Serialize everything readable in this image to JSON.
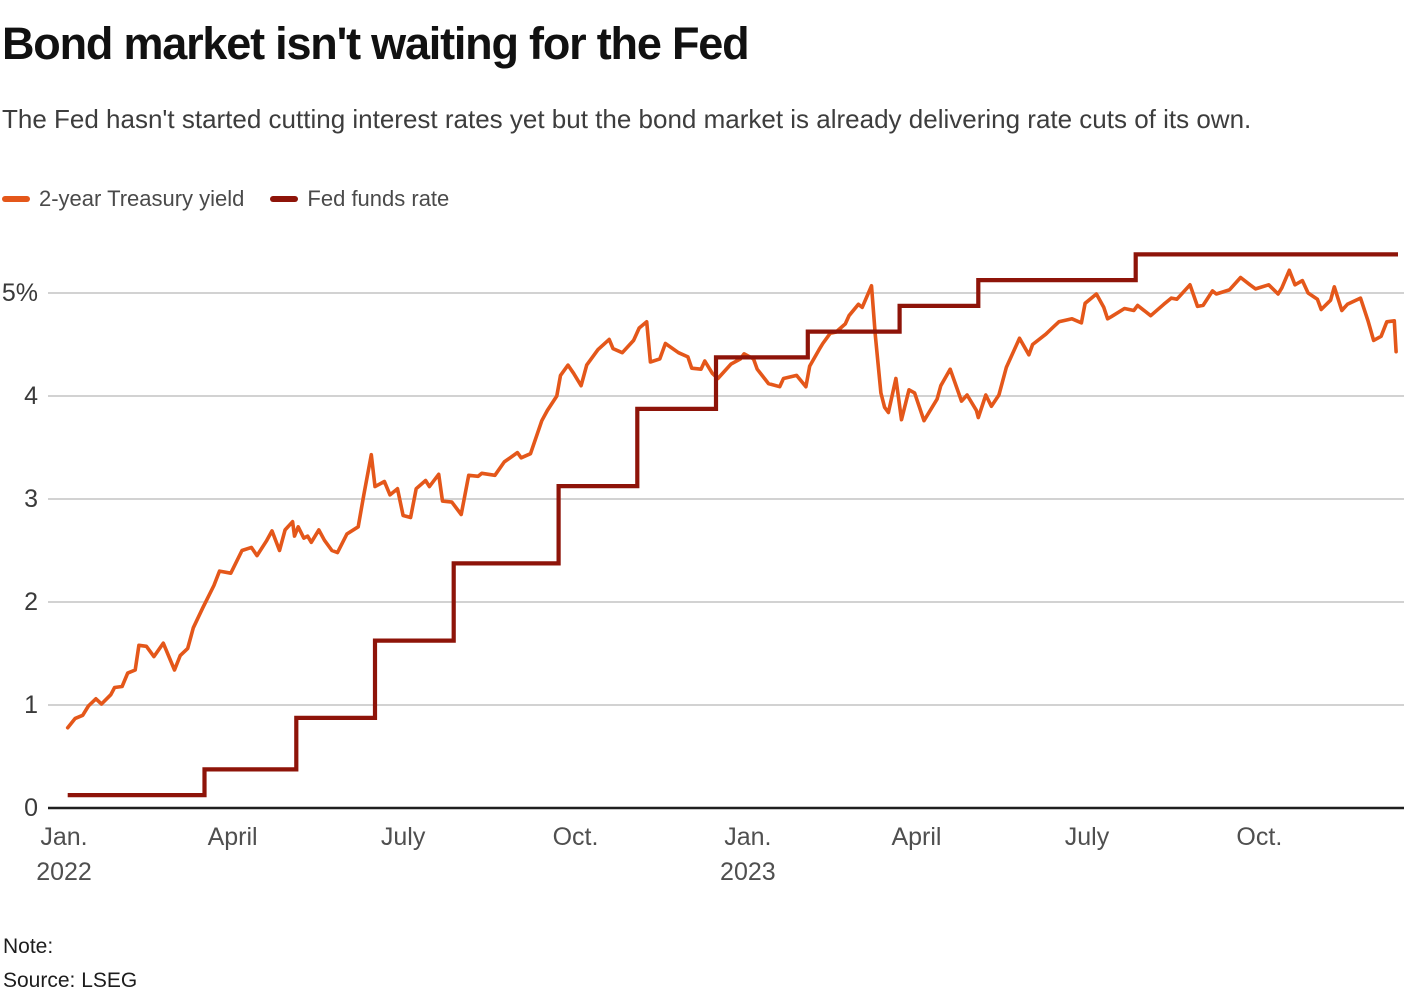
{
  "header": {
    "title": "Bond market isn't waiting for the Fed",
    "subtitle": "The Fed hasn't started cutting interest rates yet but the bond market is already delivering rate cuts of its own."
  },
  "legend": {
    "items": [
      {
        "label": "2-year Treasury yield",
        "color": "#e4571a"
      },
      {
        "label": "Fed funds rate",
        "color": "#8e1409"
      }
    ]
  },
  "footer": {
    "note": "Note:",
    "source": "Source: LSEG"
  },
  "colors": {
    "treasury_line": "#e4571a",
    "fed_funds_line": "#8e1409",
    "gridline": "#cbcbcb",
    "axis_line": "#1f1f1f",
    "tick_text": "#4f4f4f"
  },
  "chart_data": {
    "type": "line",
    "title": "Bond market isn't waiting for the Fed",
    "xlabel": "",
    "ylabel": "",
    "grid": "horizontal",
    "legend_position": "top-left",
    "ylim": [
      0,
      5.6
    ],
    "y_ticks": [
      0,
      1,
      2,
      3,
      4,
      5
    ],
    "y_tick_labels": [
      "0",
      "1",
      "2",
      "3",
      "4",
      "5%"
    ],
    "x_domain": [
      "2022-01-01",
      "2023-12-14"
    ],
    "x_ticks": [
      {
        "label": "Jan.",
        "sublabel": "2022",
        "date": "2022-01-01"
      },
      {
        "label": "April",
        "sublabel": "",
        "date": "2022-04-01"
      },
      {
        "label": "July",
        "sublabel": "",
        "date": "2022-07-01"
      },
      {
        "label": "Oct.",
        "sublabel": "",
        "date": "2022-10-01"
      },
      {
        "label": "Jan.",
        "sublabel": "2023",
        "date": "2023-01-01"
      },
      {
        "label": "April",
        "sublabel": "",
        "date": "2023-04-01"
      },
      {
        "label": "July",
        "sublabel": "",
        "date": "2023-07-01"
      },
      {
        "label": "Oct.",
        "sublabel": "",
        "date": "2023-10-01"
      }
    ],
    "series": [
      {
        "name": "2-year Treasury yield",
        "color": "#e4571a",
        "style": "line",
        "points": [
          [
            "2022-01-03",
            0.78
          ],
          [
            "2022-01-07",
            0.87
          ],
          [
            "2022-01-11",
            0.9
          ],
          [
            "2022-01-14",
            0.99
          ],
          [
            "2022-01-18",
            1.06
          ],
          [
            "2022-01-21",
            1.01
          ],
          [
            "2022-01-26",
            1.1
          ],
          [
            "2022-01-28",
            1.17
          ],
          [
            "2022-02-01",
            1.18
          ],
          [
            "2022-02-04",
            1.31
          ],
          [
            "2022-02-08",
            1.34
          ],
          [
            "2022-02-10",
            1.58
          ],
          [
            "2022-02-14",
            1.57
          ],
          [
            "2022-02-18",
            1.47
          ],
          [
            "2022-02-23",
            1.6
          ],
          [
            "2022-03-01",
            1.34
          ],
          [
            "2022-03-04",
            1.48
          ],
          [
            "2022-03-08",
            1.55
          ],
          [
            "2022-03-11",
            1.75
          ],
          [
            "2022-03-16",
            1.94
          ],
          [
            "2022-03-22",
            2.16
          ],
          [
            "2022-03-25",
            2.3
          ],
          [
            "2022-03-31",
            2.28
          ],
          [
            "2022-04-06",
            2.5
          ],
          [
            "2022-04-11",
            2.53
          ],
          [
            "2022-04-14",
            2.45
          ],
          [
            "2022-04-19",
            2.59
          ],
          [
            "2022-04-22",
            2.69
          ],
          [
            "2022-04-26",
            2.5
          ],
          [
            "2022-04-29",
            2.7
          ],
          [
            "2022-05-03",
            2.78
          ],
          [
            "2022-05-04",
            2.64
          ],
          [
            "2022-05-06",
            2.73
          ],
          [
            "2022-05-09",
            2.62
          ],
          [
            "2022-05-11",
            2.64
          ],
          [
            "2022-05-13",
            2.58
          ],
          [
            "2022-05-17",
            2.7
          ],
          [
            "2022-05-20",
            2.6
          ],
          [
            "2022-05-24",
            2.5
          ],
          [
            "2022-05-27",
            2.48
          ],
          [
            "2022-06-01",
            2.66
          ],
          [
            "2022-06-07",
            2.73
          ],
          [
            "2022-06-10",
            3.04
          ],
          [
            "2022-06-14",
            3.43
          ],
          [
            "2022-06-16",
            3.12
          ],
          [
            "2022-06-21",
            3.17
          ],
          [
            "2022-06-24",
            3.04
          ],
          [
            "2022-06-28",
            3.1
          ],
          [
            "2022-07-01",
            2.84
          ],
          [
            "2022-07-05",
            2.82
          ],
          [
            "2022-07-08",
            3.1
          ],
          [
            "2022-07-13",
            3.18
          ],
          [
            "2022-07-15",
            3.12
          ],
          [
            "2022-07-20",
            3.24
          ],
          [
            "2022-07-22",
            2.98
          ],
          [
            "2022-07-27",
            2.97
          ],
          [
            "2022-08-01",
            2.85
          ],
          [
            "2022-08-05",
            3.23
          ],
          [
            "2022-08-10",
            3.22
          ],
          [
            "2022-08-12",
            3.25
          ],
          [
            "2022-08-19",
            3.23
          ],
          [
            "2022-08-24",
            3.36
          ],
          [
            "2022-08-31",
            3.45
          ],
          [
            "2022-09-02",
            3.4
          ],
          [
            "2022-09-07",
            3.44
          ],
          [
            "2022-09-13",
            3.76
          ],
          [
            "2022-09-16",
            3.86
          ],
          [
            "2022-09-21",
            4.0
          ],
          [
            "2022-09-23",
            4.2
          ],
          [
            "2022-09-27",
            4.3
          ],
          [
            "2022-09-30",
            4.22
          ],
          [
            "2022-10-04",
            4.1
          ],
          [
            "2022-10-07",
            4.3
          ],
          [
            "2022-10-13",
            4.45
          ],
          [
            "2022-10-19",
            4.55
          ],
          [
            "2022-10-21",
            4.46
          ],
          [
            "2022-10-26",
            4.42
          ],
          [
            "2022-11-01",
            4.54
          ],
          [
            "2022-11-04",
            4.66
          ],
          [
            "2022-11-08",
            4.72
          ],
          [
            "2022-11-10",
            4.33
          ],
          [
            "2022-11-15",
            4.36
          ],
          [
            "2022-11-18",
            4.51
          ],
          [
            "2022-11-25",
            4.42
          ],
          [
            "2022-11-30",
            4.38
          ],
          [
            "2022-12-02",
            4.27
          ],
          [
            "2022-12-07",
            4.26
          ],
          [
            "2022-12-09",
            4.34
          ],
          [
            "2022-12-13",
            4.22
          ],
          [
            "2022-12-16",
            4.17
          ],
          [
            "2022-12-23",
            4.31
          ],
          [
            "2022-12-28",
            4.36
          ],
          [
            "2022-12-30",
            4.41
          ],
          [
            "2023-01-04",
            4.36
          ],
          [
            "2023-01-06",
            4.26
          ],
          [
            "2023-01-12",
            4.12
          ],
          [
            "2023-01-18",
            4.09
          ],
          [
            "2023-01-20",
            4.17
          ],
          [
            "2023-01-27",
            4.2
          ],
          [
            "2023-02-01",
            4.09
          ],
          [
            "2023-02-03",
            4.29
          ],
          [
            "2023-02-08",
            4.45
          ],
          [
            "2023-02-10",
            4.51
          ],
          [
            "2023-02-14",
            4.61
          ],
          [
            "2023-02-17",
            4.62
          ],
          [
            "2023-02-22",
            4.7
          ],
          [
            "2023-02-24",
            4.78
          ],
          [
            "2023-03-01",
            4.89
          ],
          [
            "2023-03-03",
            4.86
          ],
          [
            "2023-03-08",
            5.07
          ],
          [
            "2023-03-10",
            4.59
          ],
          [
            "2023-03-13",
            4.03
          ],
          [
            "2023-03-15",
            3.89
          ],
          [
            "2023-03-17",
            3.84
          ],
          [
            "2023-03-21",
            4.17
          ],
          [
            "2023-03-24",
            3.77
          ],
          [
            "2023-03-28",
            4.06
          ],
          [
            "2023-03-31",
            4.03
          ],
          [
            "2023-04-05",
            3.76
          ],
          [
            "2023-04-12",
            3.97
          ],
          [
            "2023-04-14",
            4.1
          ],
          [
            "2023-04-19",
            4.26
          ],
          [
            "2023-04-25",
            3.95
          ],
          [
            "2023-04-28",
            4.01
          ],
          [
            "2023-05-03",
            3.86
          ],
          [
            "2023-05-04",
            3.79
          ],
          [
            "2023-05-08",
            4.01
          ],
          [
            "2023-05-11",
            3.9
          ],
          [
            "2023-05-15",
            4.01
          ],
          [
            "2023-05-19",
            4.28
          ],
          [
            "2023-05-26",
            4.56
          ],
          [
            "2023-05-31",
            4.4
          ],
          [
            "2023-06-02",
            4.5
          ],
          [
            "2023-06-09",
            4.6
          ],
          [
            "2023-06-13",
            4.67
          ],
          [
            "2023-06-16",
            4.72
          ],
          [
            "2023-06-23",
            4.75
          ],
          [
            "2023-06-28",
            4.71
          ],
          [
            "2023-06-30",
            4.9
          ],
          [
            "2023-07-06",
            4.99
          ],
          [
            "2023-07-10",
            4.86
          ],
          [
            "2023-07-12",
            4.75
          ],
          [
            "2023-07-14",
            4.77
          ],
          [
            "2023-07-21",
            4.85
          ],
          [
            "2023-07-26",
            4.83
          ],
          [
            "2023-07-28",
            4.88
          ],
          [
            "2023-08-04",
            4.78
          ],
          [
            "2023-08-11",
            4.89
          ],
          [
            "2023-08-15",
            4.95
          ],
          [
            "2023-08-18",
            4.94
          ],
          [
            "2023-08-25",
            5.08
          ],
          [
            "2023-08-29",
            4.87
          ],
          [
            "2023-09-01",
            4.88
          ],
          [
            "2023-09-06",
            5.02
          ],
          [
            "2023-09-08",
            4.99
          ],
          [
            "2023-09-15",
            5.03
          ],
          [
            "2023-09-21",
            5.15
          ],
          [
            "2023-09-26",
            5.08
          ],
          [
            "2023-09-29",
            5.04
          ],
          [
            "2023-10-06",
            5.08
          ],
          [
            "2023-10-11",
            4.99
          ],
          [
            "2023-10-13",
            5.05
          ],
          [
            "2023-10-17",
            5.22
          ],
          [
            "2023-10-20",
            5.08
          ],
          [
            "2023-10-24",
            5.12
          ],
          [
            "2023-10-27",
            5.0
          ],
          [
            "2023-11-01",
            4.94
          ],
          [
            "2023-11-03",
            4.84
          ],
          [
            "2023-11-08",
            4.93
          ],
          [
            "2023-11-10",
            5.06
          ],
          [
            "2023-11-14",
            4.83
          ],
          [
            "2023-11-17",
            4.89
          ],
          [
            "2023-11-24",
            4.95
          ],
          [
            "2023-11-28",
            4.73
          ],
          [
            "2023-12-01",
            4.54
          ],
          [
            "2023-12-05",
            4.58
          ],
          [
            "2023-12-08",
            4.72
          ],
          [
            "2023-12-12",
            4.73
          ],
          [
            "2023-12-13",
            4.43
          ]
        ]
      },
      {
        "name": "Fed funds rate",
        "color": "#8e1409",
        "style": "step-after",
        "points": [
          [
            "2022-01-03",
            0.125
          ],
          [
            "2022-03-17",
            0.375
          ],
          [
            "2022-05-05",
            0.875
          ],
          [
            "2022-06-16",
            1.625
          ],
          [
            "2022-07-28",
            2.375
          ],
          [
            "2022-09-22",
            3.125
          ],
          [
            "2022-11-03",
            3.875
          ],
          [
            "2022-12-15",
            4.375
          ],
          [
            "2023-02-02",
            4.625
          ],
          [
            "2023-03-23",
            4.875
          ],
          [
            "2023-05-04",
            5.125
          ],
          [
            "2023-07-27",
            5.375
          ],
          [
            "2023-12-13",
            5.375
          ]
        ]
      }
    ]
  }
}
